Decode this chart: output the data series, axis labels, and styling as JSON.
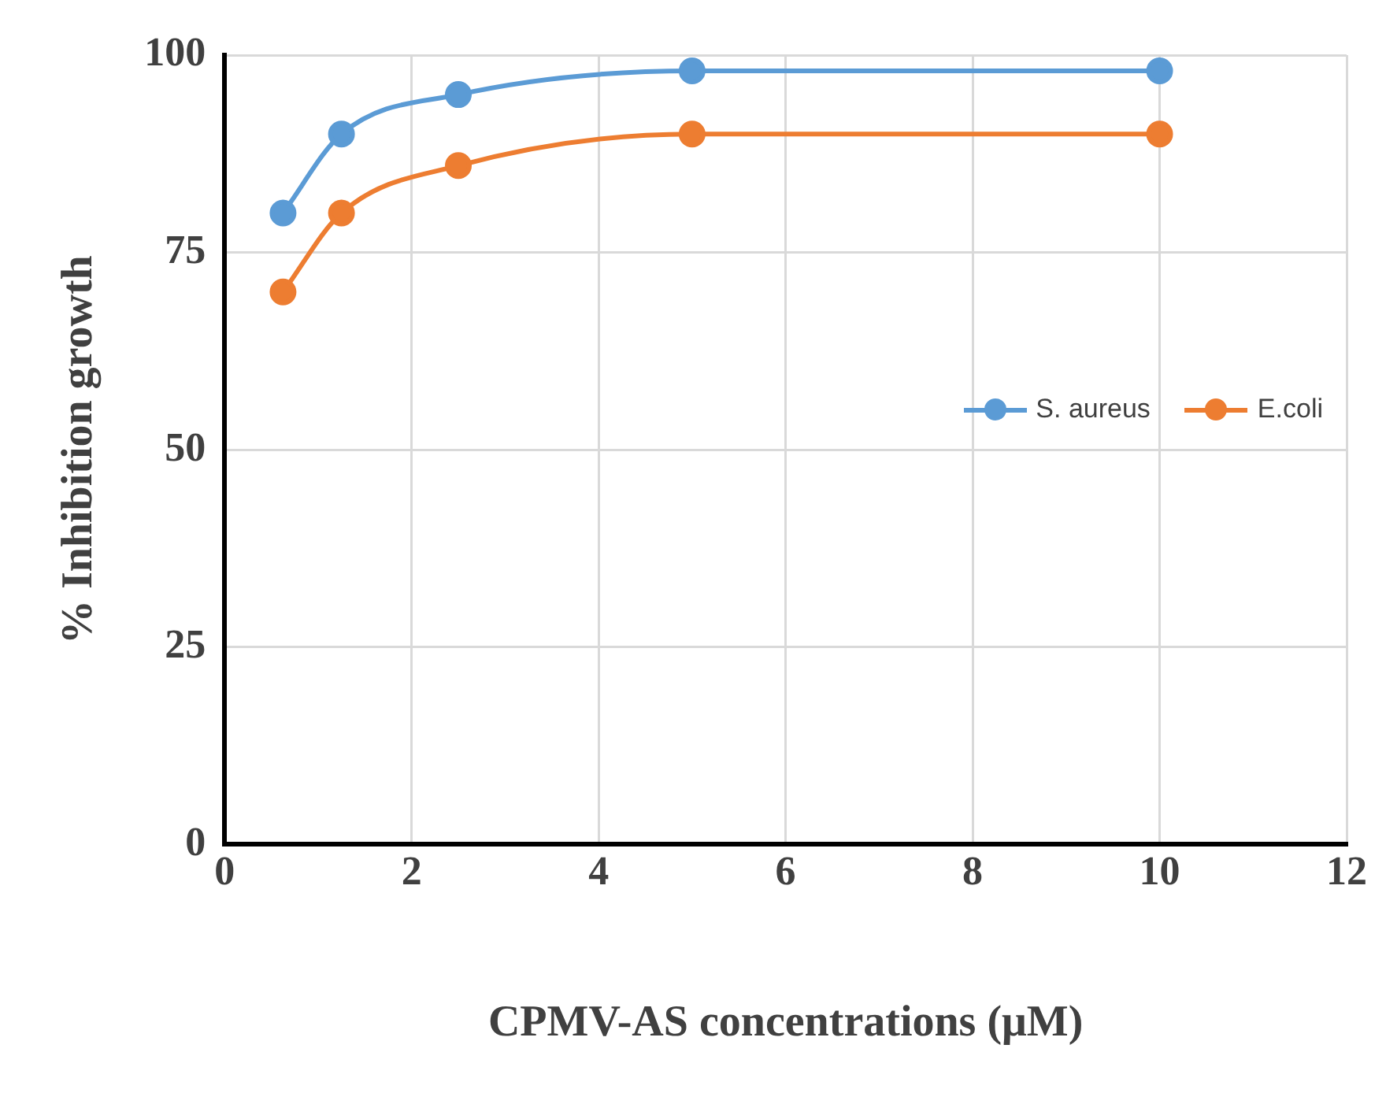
{
  "chart_data": {
    "type": "line",
    "xlabel": "CPMV-AS concentrations (μM)",
    "ylabel": "% Inhibition growth",
    "x": [
      0.625,
      1.25,
      2.5,
      5,
      10
    ],
    "series": [
      {
        "name": "S. aureus",
        "color": "#5b9bd5",
        "values": [
          80,
          90,
          95,
          98,
          98
        ]
      },
      {
        "name": "E.coli",
        "color": "#ed7d31",
        "values": [
          70,
          80,
          86,
          90,
          90
        ]
      }
    ],
    "xlim": [
      0,
      12
    ],
    "xticks": [
      0,
      2,
      4,
      6,
      8,
      10,
      12
    ],
    "ylim": [
      0,
      100
    ],
    "yticks": [
      0,
      25,
      50,
      75,
      100
    ],
    "grid": true,
    "legend": "right",
    "marker": "circle",
    "line_style": "solid"
  }
}
